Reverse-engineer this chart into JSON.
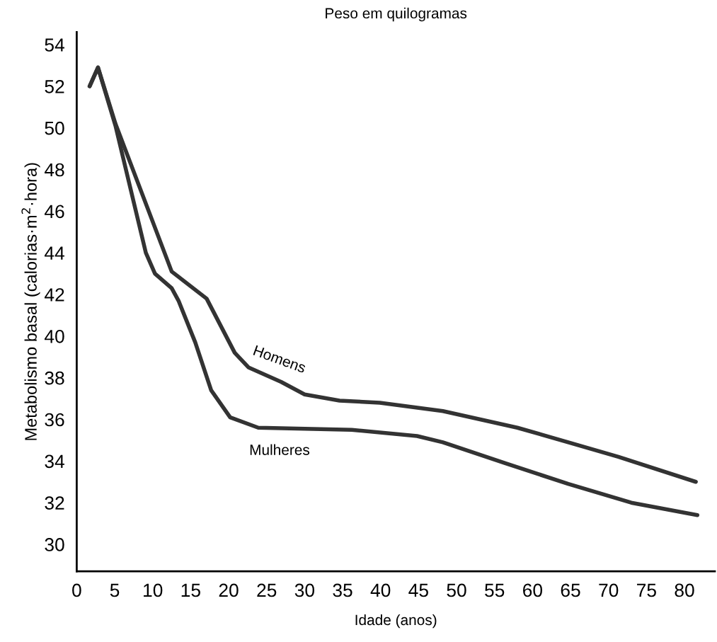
{
  "chart_data": {
    "type": "line",
    "title": "Peso em quilogramas",
    "xlabel": "Idade (anos)",
    "ylabel": "Metabolismo basal (calorias·m$^{2}$·hora)",
    "xlim": [
      0,
      84
    ],
    "ylim": [
      28.7,
      54.6
    ],
    "xticks": [
      0,
      5,
      10,
      15,
      20,
      25,
      30,
      35,
      40,
      45,
      50,
      55,
      60,
      65,
      70,
      75,
      80
    ],
    "yticks": [
      30,
      32,
      34,
      36,
      38,
      40,
      42,
      44,
      46,
      48,
      50,
      52,
      54
    ],
    "grid": false,
    "legend": false,
    "marker": "none",
    "line_style": "solid",
    "series": [
      {
        "name": "Homens",
        "color": "#333333",
        "x": [
          1.7,
          2.8,
          5.1,
          12.5,
          17.1,
          20.8,
          22.6,
          26.9,
          30,
          34.6,
          39.9,
          48.2,
          58,
          64.7,
          71.3,
          81.5
        ],
        "values": [
          52.0,
          52.9,
          50.2,
          43.1,
          41.8,
          39.2,
          38.5,
          37.8,
          37.2,
          36.9,
          36.8,
          36.4,
          35.6,
          34.9,
          34.2,
          33.0
        ]
      },
      {
        "name": "Mulheres",
        "color": "#333333",
        "x": [
          1.7,
          2.8,
          5.1,
          9.1,
          10.3,
          12.5,
          13.4,
          15.6,
          17.7,
          20.2,
          23.9,
          36.2,
          44.8,
          48.2,
          56.4,
          64.7,
          73,
          81.7
        ],
        "values": [
          52.0,
          52.9,
          50.1,
          44.0,
          43.0,
          42.3,
          41.7,
          39.7,
          37.4,
          36.1,
          35.6,
          35.5,
          35.2,
          34.9,
          33.9,
          32.9,
          32.0,
          31.4
        ]
      }
    ]
  }
}
